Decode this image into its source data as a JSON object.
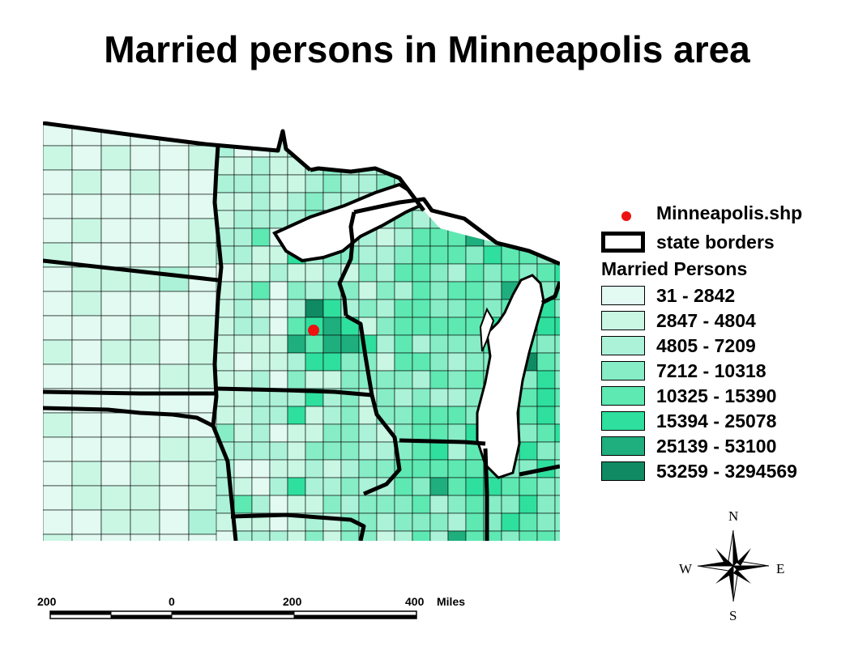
{
  "title": "Married persons in Minneapolis area",
  "legend": {
    "point_label": "Minneapolis.shp",
    "border_label": "state borders",
    "class_heading": "Married Persons",
    "point_color": "#ee1111",
    "classes": [
      {
        "label": "31 - 2842",
        "color": "#e2faf1"
      },
      {
        "label": "2847 - 4804",
        "color": "#c9f7e4"
      },
      {
        "label": "4805 - 7209",
        "color": "#abf2d8"
      },
      {
        "label": "7212 - 10318",
        "color": "#86edc6"
      },
      {
        "label": "10325 - 15390",
        "color": "#5ee8b2"
      },
      {
        "label": "15394 - 25078",
        "color": "#2fdf9e"
      },
      {
        "label": "25139 - 53100",
        "color": "#1fae7d"
      },
      {
        "label": "53259 - 3294569",
        "color": "#0f8a62"
      }
    ]
  },
  "scale": {
    "labels": [
      "200",
      "0",
      "200",
      "400"
    ],
    "units": "Miles"
  },
  "compass": {
    "n": "N",
    "s": "S",
    "e": "E",
    "w": "W"
  }
}
